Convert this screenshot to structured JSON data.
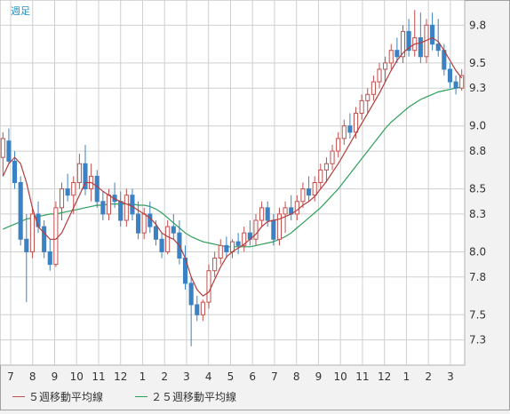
{
  "chart_data": {
    "type": "candlestick",
    "period_label": "週足",
    "y_ticks": [
      7.3,
      7.5,
      7.8,
      8.0,
      8.3,
      8.5,
      8.8,
      9.0,
      9.3,
      9.5,
      9.8
    ],
    "x_tick_labels": [
      "7",
      "8",
      "9",
      "10",
      "11",
      "12",
      "1",
      "2",
      "3",
      "4",
      "5",
      "6",
      "7",
      "8",
      "9",
      "10",
      "11",
      "12",
      "1",
      "2",
      "3"
    ],
    "ylim": [
      7.1,
      10.0
    ],
    "grid": true,
    "legend": [
      {
        "name": "５週移動平均線",
        "color": "#c0504d"
      },
      {
        "name": "２５週移動平均線",
        "color": "#2e9e5b"
      }
    ],
    "colors": {
      "up": "#c0504d",
      "down": "#3b82c4",
      "ma5": "#b43c3c",
      "ma25": "#2e9e5b",
      "grid": "#cfcfcf"
    },
    "candles": [
      [
        8.75,
        8.95,
        8.6,
        8.9
      ],
      [
        8.88,
        8.98,
        8.7,
        8.72
      ],
      [
        8.72,
        8.8,
        8.5,
        8.55
      ],
      [
        8.55,
        8.6,
        8.05,
        8.1
      ],
      [
        8.1,
        8.3,
        7.6,
        8.0
      ],
      [
        8.0,
        8.35,
        7.95,
        8.3
      ],
      [
        8.3,
        8.4,
        8.15,
        8.2
      ],
      [
        8.2,
        8.25,
        7.95,
        8.0
      ],
      [
        8.0,
        8.1,
        7.85,
        7.9
      ],
      [
        7.9,
        8.4,
        7.88,
        8.35
      ],
      [
        8.35,
        8.55,
        8.25,
        8.5
      ],
      [
        8.5,
        8.62,
        8.4,
        8.45
      ],
      [
        8.45,
        8.6,
        8.3,
        8.55
      ],
      [
        8.55,
        8.78,
        8.5,
        8.7
      ],
      [
        8.7,
        8.85,
        8.45,
        8.5
      ],
      [
        8.5,
        8.7,
        8.4,
        8.6
      ],
      [
        8.6,
        8.65,
        8.35,
        8.4
      ],
      [
        8.4,
        8.48,
        8.25,
        8.3
      ],
      [
        8.3,
        8.5,
        8.25,
        8.45
      ],
      [
        8.45,
        8.55,
        8.35,
        8.4
      ],
      [
        8.4,
        8.48,
        8.2,
        8.25
      ],
      [
        8.25,
        8.5,
        8.2,
        8.45
      ],
      [
        8.45,
        8.5,
        8.25,
        8.3
      ],
      [
        8.3,
        8.4,
        8.1,
        8.15
      ],
      [
        8.15,
        8.35,
        8.1,
        8.3
      ],
      [
        8.3,
        8.4,
        8.15,
        8.2
      ],
      [
        8.2,
        8.25,
        8.05,
        8.1
      ],
      [
        8.1,
        8.15,
        7.95,
        8.0
      ],
      [
        8.0,
        8.25,
        7.98,
        8.2
      ],
      [
        8.2,
        8.3,
        8.1,
        8.15
      ],
      [
        8.15,
        8.25,
        7.9,
        7.95
      ],
      [
        7.95,
        8.05,
        7.7,
        7.75
      ],
      [
        7.75,
        7.8,
        7.25,
        7.58
      ],
      [
        7.58,
        7.65,
        7.45,
        7.5
      ],
      [
        7.5,
        7.62,
        7.45,
        7.6
      ],
      [
        7.6,
        7.9,
        7.55,
        7.85
      ],
      [
        7.85,
        8.0,
        7.8,
        7.95
      ],
      [
        7.95,
        8.1,
        7.9,
        8.05
      ],
      [
        8.05,
        8.12,
        7.95,
        8.0
      ],
      [
        8.0,
        8.1,
        7.95,
        8.08
      ],
      [
        8.08,
        8.15,
        7.98,
        8.05
      ],
      [
        8.05,
        8.2,
        8.0,
        8.15
      ],
      [
        8.15,
        8.25,
        8.05,
        8.1
      ],
      [
        8.1,
        8.3,
        8.05,
        8.25
      ],
      [
        8.25,
        8.4,
        8.2,
        8.35
      ],
      [
        8.35,
        8.4,
        8.2,
        8.25
      ],
      [
        8.25,
        8.3,
        8.05,
        8.1
      ],
      [
        8.1,
        8.35,
        8.05,
        8.3
      ],
      [
        8.3,
        8.4,
        8.15,
        8.35
      ],
      [
        8.35,
        8.45,
        8.25,
        8.3
      ],
      [
        8.3,
        8.45,
        8.25,
        8.4
      ],
      [
        8.4,
        8.55,
        8.35,
        8.5
      ],
      [
        8.5,
        8.6,
        8.4,
        8.45
      ],
      [
        8.45,
        8.6,
        8.4,
        8.55
      ],
      [
        8.55,
        8.7,
        8.5,
        8.65
      ],
      [
        8.65,
        8.75,
        8.55,
        8.7
      ],
      [
        8.7,
        8.85,
        8.65,
        8.8
      ],
      [
        8.8,
        8.95,
        8.75,
        8.9
      ],
      [
        8.9,
        9.05,
        8.85,
        9.0
      ],
      [
        9.0,
        9.1,
        8.9,
        8.95
      ],
      [
        8.95,
        9.15,
        8.9,
        9.1
      ],
      [
        9.1,
        9.25,
        9.05,
        9.2
      ],
      [
        9.2,
        9.3,
        9.1,
        9.25
      ],
      [
        9.25,
        9.4,
        9.2,
        9.35
      ],
      [
        9.35,
        9.5,
        9.3,
        9.45
      ],
      [
        9.45,
        9.55,
        9.35,
        9.5
      ],
      [
        9.5,
        9.65,
        9.45,
        9.6
      ],
      [
        9.6,
        9.7,
        9.5,
        9.55
      ],
      [
        9.55,
        9.8,
        9.5,
        9.75
      ],
      [
        9.75,
        9.85,
        9.55,
        9.6
      ],
      [
        9.6,
        9.92,
        9.55,
        9.7
      ],
      [
        9.7,
        9.9,
        9.5,
        9.55
      ],
      [
        9.55,
        9.85,
        9.5,
        9.8
      ],
      [
        9.8,
        9.9,
        9.6,
        9.65
      ],
      [
        9.65,
        9.85,
        9.55,
        9.6
      ],
      [
        9.6,
        9.65,
        9.4,
        9.45
      ],
      [
        9.45,
        9.5,
        9.3,
        9.35
      ],
      [
        9.35,
        9.4,
        9.25,
        9.3
      ],
      [
        9.3,
        9.45,
        9.28,
        9.4
      ]
    ],
    "ma5": [
      8.6,
      8.7,
      8.75,
      8.7,
      8.55,
      8.35,
      8.2,
      8.15,
      8.1,
      8.1,
      8.15,
      8.25,
      8.35,
      8.45,
      8.55,
      8.55,
      8.52,
      8.48,
      8.45,
      8.42,
      8.4,
      8.38,
      8.36,
      8.33,
      8.3,
      8.27,
      8.22,
      8.15,
      8.12,
      8.1,
      8.05,
      7.95,
      7.8,
      7.7,
      7.65,
      7.68,
      7.78,
      7.88,
      7.96,
      8.0,
      8.03,
      8.06,
      8.1,
      8.14,
      8.2,
      8.24,
      8.25,
      8.26,
      8.28,
      8.3,
      8.33,
      8.37,
      8.4,
      8.44,
      8.5,
      8.56,
      8.63,
      8.7,
      8.78,
      8.86,
      8.94,
      9.02,
      9.1,
      9.18,
      9.26,
      9.35,
      9.44,
      9.52,
      9.58,
      9.62,
      9.65,
      9.66,
      9.68,
      9.7,
      9.67,
      9.6,
      9.52,
      9.44,
      9.38
    ],
    "ma25": [
      8.18,
      8.2,
      8.22,
      8.24,
      8.26,
      8.27,
      8.28,
      8.29,
      8.3,
      8.3,
      8.31,
      8.32,
      8.33,
      8.34,
      8.35,
      8.36,
      8.37,
      8.37,
      8.38,
      8.38,
      8.38,
      8.38,
      8.38,
      8.37,
      8.37,
      8.36,
      8.34,
      8.31,
      8.27,
      8.23,
      8.19,
      8.15,
      8.12,
      8.1,
      8.08,
      8.07,
      8.06,
      8.05,
      8.04,
      8.04,
      8.04,
      8.04,
      8.04,
      8.05,
      8.06,
      8.07,
      8.08,
      8.1,
      8.12,
      8.15,
      8.19,
      8.23,
      8.27,
      8.31,
      8.35,
      8.4,
      8.45,
      8.5,
      8.56,
      8.62,
      8.68,
      8.74,
      8.8,
      8.86,
      8.92,
      8.98,
      9.03,
      9.07,
      9.11,
      9.15,
      9.18,
      9.21,
      9.23,
      9.25,
      9.27,
      9.28,
      9.29,
      9.3,
      9.31
    ]
  }
}
